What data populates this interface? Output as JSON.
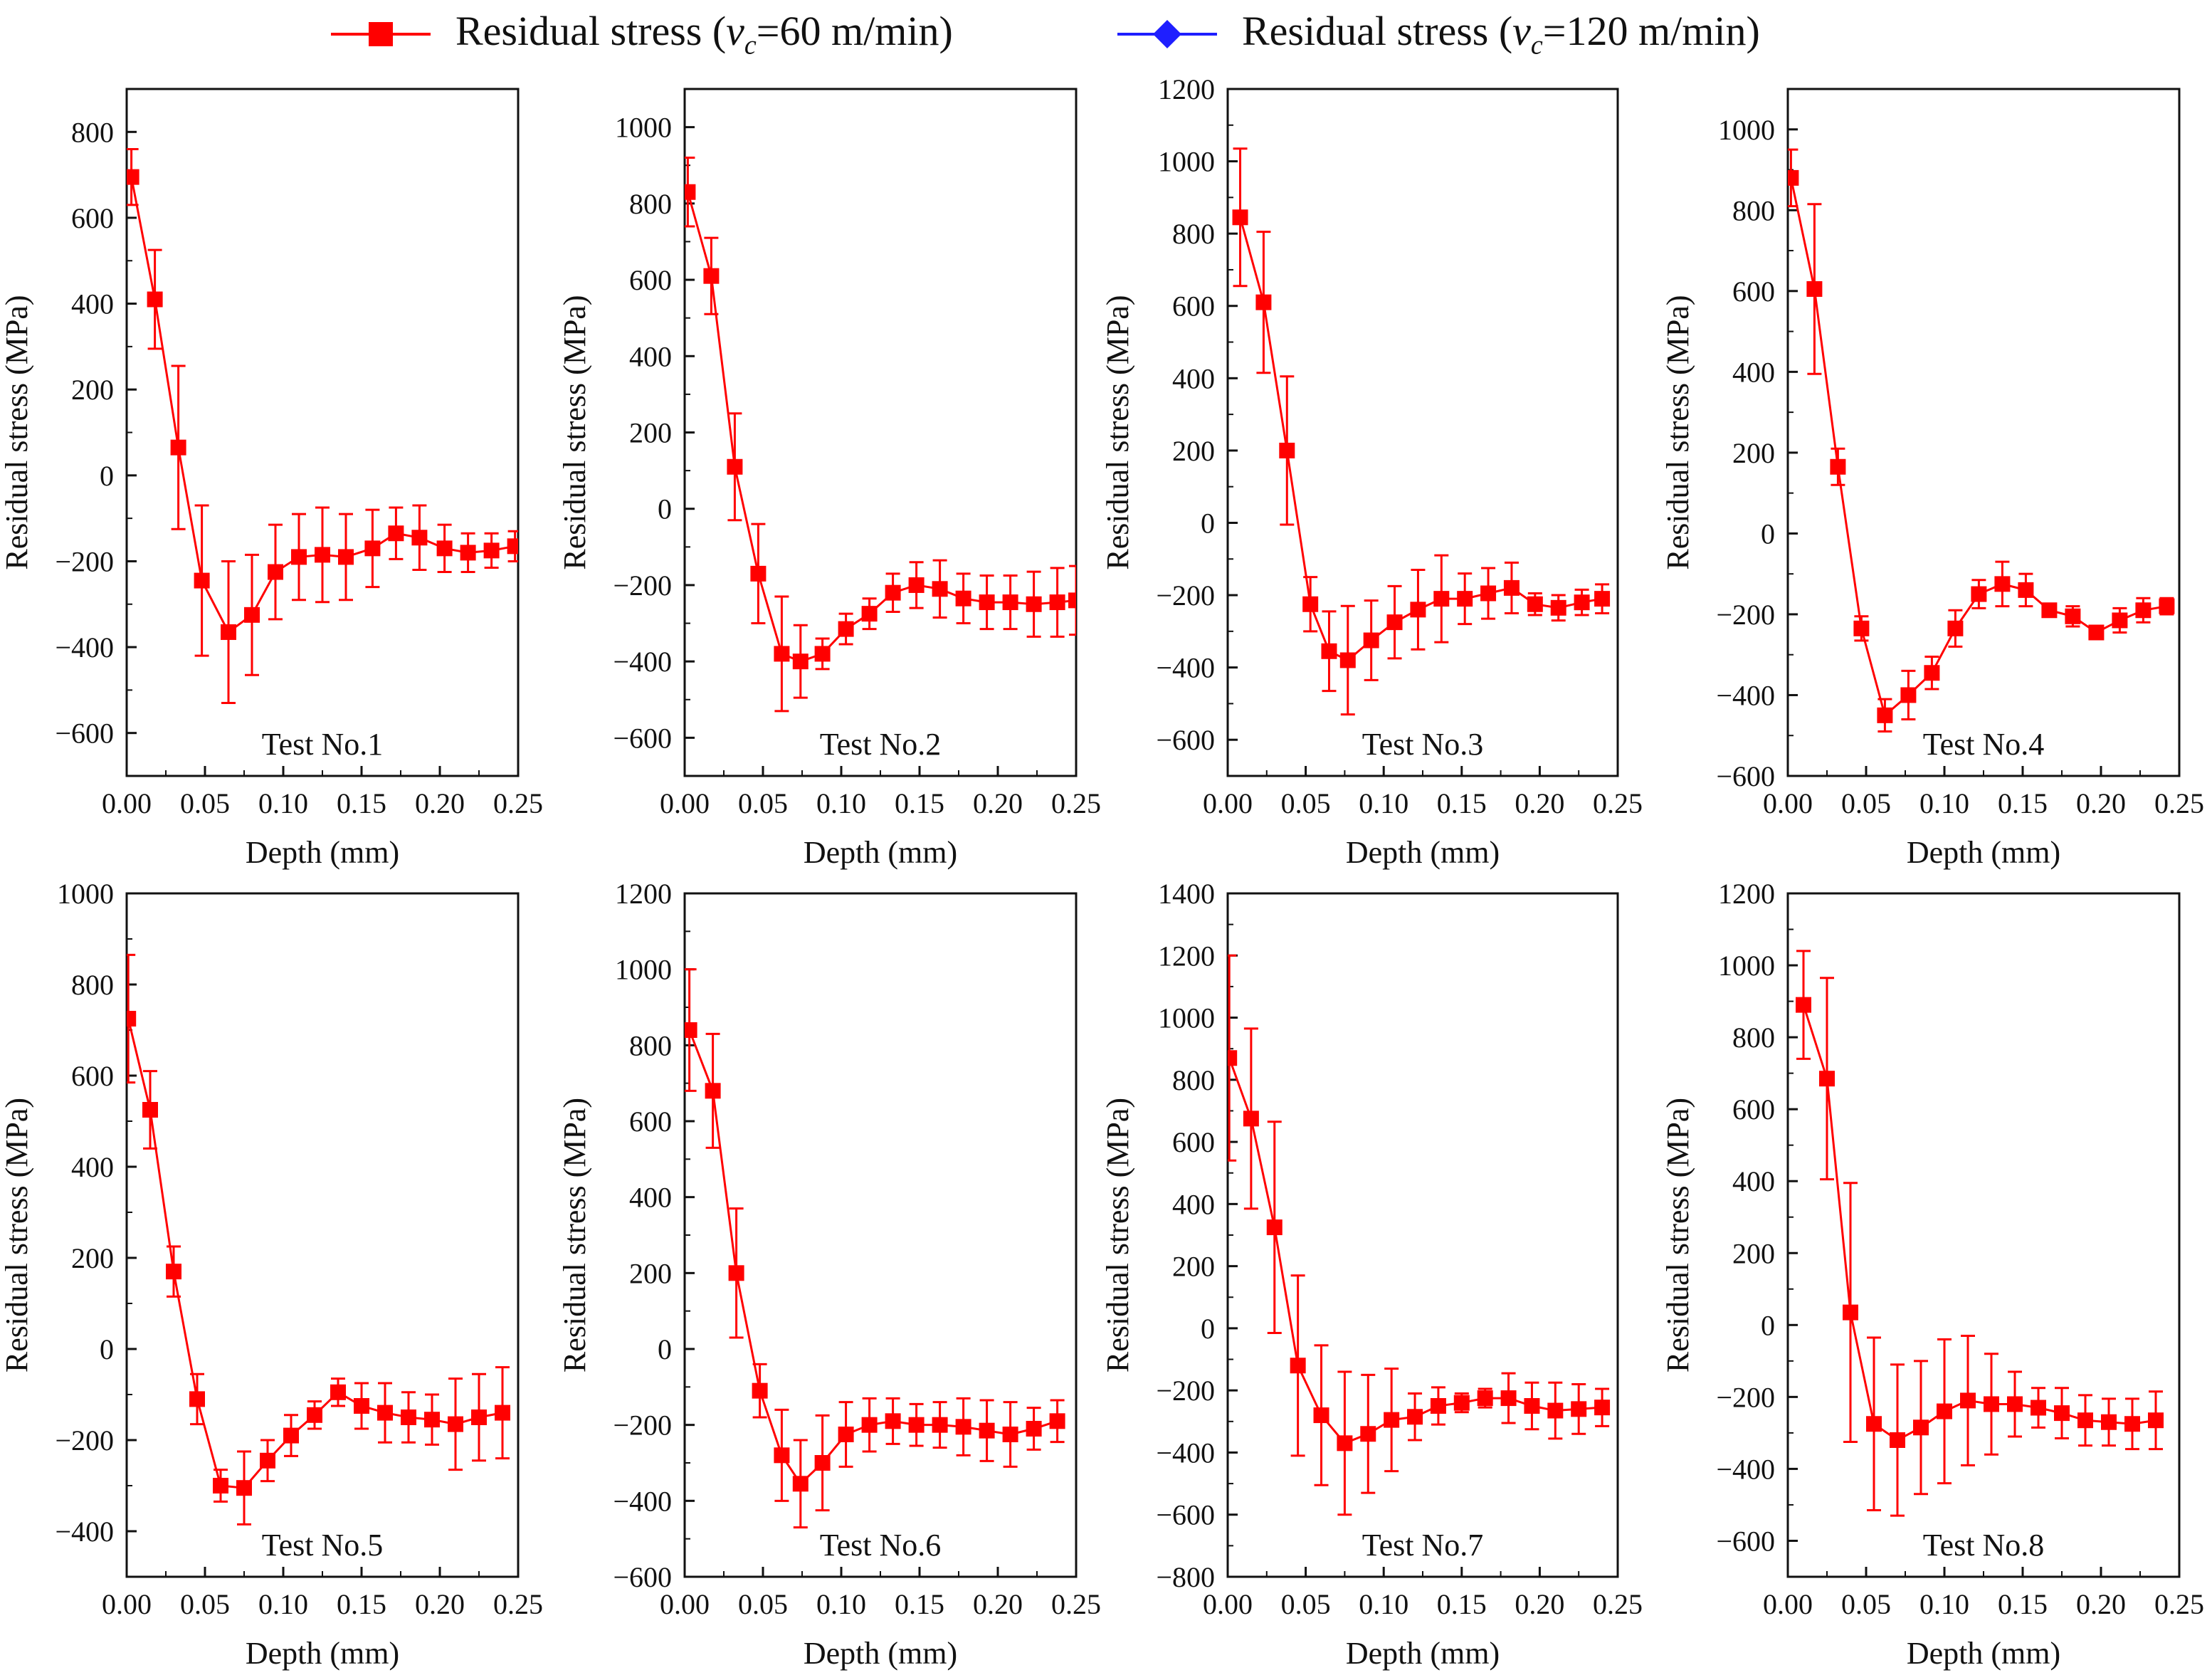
{
  "legend": {
    "series": [
      {
        "name": "Residual stress (vc=60 m/min)",
        "prefix": "Residual stress (",
        "var": "v",
        "sub": "c",
        "suffix": "=60 m/min)",
        "color": "#ff0000",
        "marker": "square"
      },
      {
        "name": "Residual stress (vc=120 m/min)",
        "prefix": "Residual stress (",
        "var": "v",
        "sub": "c",
        "suffix": "=120 m/min)",
        "color": "#1f1fff",
        "marker": "diamond"
      }
    ]
  },
  "chart_data": [
    {
      "type": "line",
      "title": "Test No.1",
      "xlabel": "Depth (mm)",
      "ylabel": "Residual stress (MPa)",
      "xlim": [
        0,
        0.25
      ],
      "ylim": [
        -700,
        900
      ],
      "xticks": [
        "0.00",
        "0.05",
        "0.10",
        "0.15",
        "0.20",
        "0.25"
      ],
      "yticks": [
        -600,
        -400,
        -200,
        0,
        200,
        400,
        600,
        800
      ],
      "series": [
        {
          "name": "Residual stress (vc=60 m/min)",
          "color": "#ff0000",
          "x": [
            0.003,
            0.018,
            0.033,
            0.048,
            0.065,
            0.08,
            0.095,
            0.11,
            0.125,
            0.14,
            0.157,
            0.172,
            0.187,
            0.203,
            0.218,
            0.233,
            0.248
          ],
          "y": [
            695,
            410,
            65,
            -245,
            -365,
            -325,
            -225,
            -190,
            -185,
            -190,
            -170,
            -135,
            -145,
            -170,
            -180,
            -175,
            -165
          ],
          "err": [
            65,
            115,
            190,
            175,
            165,
            140,
            110,
            100,
            110,
            100,
            90,
            60,
            75,
            55,
            45,
            40,
            35
          ]
        }
      ]
    },
    {
      "type": "line",
      "title": "Test No.2",
      "xlabel": "Depth (mm)",
      "ylabel": "Residual stress (MPa)",
      "xlim": [
        0,
        0.25
      ],
      "ylim": [
        -700,
        1100
      ],
      "xticks": [
        "0.00",
        "0.05",
        "0.10",
        "0.15",
        "0.20",
        "0.25"
      ],
      "yticks": [
        -600,
        -400,
        -200,
        0,
        200,
        400,
        600,
        800,
        1000
      ],
      "series": [
        {
          "name": "Residual stress (vc=60 m/min)",
          "color": "#ff0000",
          "x": [
            0.002,
            0.017,
            0.032,
            0.047,
            0.062,
            0.074,
            0.088,
            0.103,
            0.118,
            0.133,
            0.148,
            0.163,
            0.178,
            0.193,
            0.208,
            0.223,
            0.238,
            0.25
          ],
          "y": [
            830,
            610,
            110,
            -170,
            -380,
            -400,
            -380,
            -315,
            -275,
            -220,
            -200,
            -210,
            -235,
            -245,
            -245,
            -250,
            -245,
            -240
          ],
          "err": [
            90,
            100,
            140,
            130,
            150,
            95,
            40,
            40,
            40,
            50,
            60,
            75,
            65,
            70,
            70,
            85,
            90,
            90
          ]
        }
      ]
    },
    {
      "type": "line",
      "title": "Test No.3",
      "xlabel": "Depth (mm)",
      "ylabel": "Residual stress (MPa)",
      "xlim": [
        0,
        0.25
      ],
      "ylim": [
        -700,
        1200
      ],
      "xticks": [
        "0.00",
        "0.05",
        "0.10",
        "0.15",
        "0.20",
        "0.25"
      ],
      "yticks": [
        -600,
        -400,
        -200,
        0,
        200,
        400,
        600,
        800,
        1000,
        1200
      ],
      "series": [
        {
          "name": "Residual stress (vc=60 m/min)",
          "color": "#ff0000",
          "x": [
            0.008,
            0.023,
            0.038,
            0.053,
            0.065,
            0.077,
            0.092,
            0.107,
            0.122,
            0.137,
            0.152,
            0.167,
            0.182,
            0.197,
            0.212,
            0.227,
            0.24
          ],
          "y": [
            845,
            610,
            200,
            -225,
            -355,
            -380,
            -325,
            -275,
            -240,
            -210,
            -210,
            -195,
            -180,
            -225,
            -235,
            -220,
            -210
          ],
          "err": [
            190,
            195,
            205,
            75,
            110,
            150,
            110,
            100,
            110,
            120,
            70,
            70,
            70,
            30,
            35,
            35,
            40
          ]
        }
      ]
    },
    {
      "type": "line",
      "title": "Test No.4",
      "xlabel": "Depth (mm)",
      "ylabel": "Residual stress (MPa)",
      "xlim": [
        0,
        0.25
      ],
      "ylim": [
        -600,
        1100
      ],
      "xticks": [
        "0.00",
        "0.05",
        "0.10",
        "0.15",
        "0.20",
        "0.25"
      ],
      "yticks": [
        -600,
        -400,
        -200,
        0,
        200,
        400,
        600,
        800,
        1000
      ],
      "series": [
        {
          "name": "Residual stress (vc=60 m/min)",
          "color": "#ff0000",
          "x": [
            0.002,
            0.017,
            0.032,
            0.047,
            0.062,
            0.077,
            0.092,
            0.107,
            0.122,
            0.137,
            0.152,
            0.167,
            0.182,
            0.197,
            0.212,
            0.227,
            0.242
          ],
          "y": [
            880,
            605,
            165,
            -235,
            -450,
            -400,
            -345,
            -235,
            -150,
            -125,
            -140,
            -190,
            -205,
            -245,
            -215,
            -190,
            -180
          ],
          "err": [
            70,
            210,
            45,
            30,
            40,
            60,
            40,
            45,
            35,
            55,
            40,
            15,
            25,
            15,
            30,
            30,
            20
          ]
        }
      ]
    },
    {
      "type": "line",
      "title": "Test No.5",
      "xlabel": "Depth (mm)",
      "ylabel": "Residual stress (MPa)",
      "xlim": [
        0,
        0.25
      ],
      "ylim": [
        -500,
        1000
      ],
      "xticks": [
        "0.00",
        "0.05",
        "0.10",
        "0.15",
        "0.20",
        "0.25"
      ],
      "yticks": [
        -400,
        -200,
        0,
        200,
        400,
        600,
        800,
        1000
      ],
      "series": [
        {
          "name": "Residual stress (vc=60 m/min)",
          "color": "#ff0000",
          "x": [
            0.001,
            0.015,
            0.03,
            0.045,
            0.06,
            0.075,
            0.09,
            0.105,
            0.12,
            0.135,
            0.15,
            0.165,
            0.18,
            0.195,
            0.21,
            0.225,
            0.24
          ],
          "y": [
            725,
            525,
            170,
            -110,
            -300,
            -305,
            -245,
            -190,
            -145,
            -95,
            -125,
            -140,
            -150,
            -155,
            -165,
            -150,
            -140
          ],
          "err": [
            140,
            85,
            55,
            55,
            35,
            80,
            45,
            45,
            30,
            30,
            50,
            65,
            55,
            55,
            100,
            95,
            100
          ]
        }
      ]
    },
    {
      "type": "line",
      "title": "Test No.6",
      "xlabel": "Depth (mm)",
      "ylabel": "Residual stress (MPa)",
      "xlim": [
        0,
        0.25
      ],
      "ylim": [
        -600,
        1200
      ],
      "xticks": [
        "0.00",
        "0.05",
        "0.10",
        "0.15",
        "0.20",
        "0.25"
      ],
      "yticks": [
        -600,
        -400,
        -200,
        0,
        200,
        400,
        600,
        800,
        1000,
        1200
      ],
      "series": [
        {
          "name": "Residual stress (vc=60 m/min)",
          "color": "#ff0000",
          "x": [
            0.003,
            0.018,
            0.033,
            0.048,
            0.062,
            0.074,
            0.088,
            0.103,
            0.118,
            0.133,
            0.148,
            0.163,
            0.178,
            0.193,
            0.208,
            0.223,
            0.238
          ],
          "y": [
            840,
            680,
            200,
            -110,
            -280,
            -355,
            -300,
            -225,
            -200,
            -190,
            -200,
            -200,
            -205,
            -215,
            -225,
            -210,
            -190
          ],
          "err": [
            160,
            150,
            170,
            70,
            120,
            115,
            125,
            85,
            70,
            60,
            55,
            60,
            75,
            80,
            85,
            55,
            55
          ]
        }
      ]
    },
    {
      "type": "line",
      "title": "Test No.7",
      "xlabel": "Depth (mm)",
      "ylabel": "Residual stress (MPa)",
      "xlim": [
        0,
        0.25
      ],
      "ylim": [
        -800,
        1400
      ],
      "xticks": [
        "0.00",
        "0.05",
        "0.10",
        "0.15",
        "0.20",
        "0.25"
      ],
      "yticks": [
        -800,
        -600,
        -400,
        -200,
        0,
        200,
        400,
        600,
        800,
        1000,
        1200,
        1400
      ],
      "series": [
        {
          "name": "Residual stress (vc=60 m/min)",
          "color": "#ff0000",
          "x": [
            0.001,
            0.015,
            0.03,
            0.045,
            0.06,
            0.075,
            0.09,
            0.105,
            0.12,
            0.135,
            0.15,
            0.165,
            0.18,
            0.195,
            0.21,
            0.225,
            0.24
          ],
          "y": [
            870,
            675,
            325,
            -120,
            -280,
            -370,
            -340,
            -295,
            -285,
            -250,
            -240,
            -225,
            -225,
            -250,
            -265,
            -260,
            -255
          ],
          "err": [
            330,
            290,
            340,
            290,
            225,
            230,
            190,
            165,
            75,
            60,
            30,
            30,
            80,
            75,
            90,
            80,
            60
          ]
        }
      ]
    },
    {
      "type": "line",
      "title": "Test No.8",
      "xlabel": "Depth (mm)",
      "ylabel": "Residual stress (MPa)",
      "xlim": [
        0,
        0.25
      ],
      "ylim": [
        -700,
        1200
      ],
      "xticks": [
        "0.00",
        "0.05",
        "0.10",
        "0.15",
        "0.20",
        "0.25"
      ],
      "yticks": [
        -600,
        -400,
        -200,
        0,
        200,
        400,
        600,
        800,
        1000,
        1200
      ],
      "series": [
        {
          "name": "Residual stress (vc=60 m/min)",
          "color": "#ff0000",
          "x": [
            0.01,
            0.025,
            0.04,
            0.055,
            0.07,
            0.085,
            0.1,
            0.115,
            0.13,
            0.145,
            0.16,
            0.175,
            0.19,
            0.205,
            0.22,
            0.235
          ],
          "y": [
            890,
            685,
            35,
            -275,
            -320,
            -285,
            -240,
            -210,
            -220,
            -220,
            -230,
            -245,
            -265,
            -270,
            -275,
            -265
          ],
          "err": [
            150,
            280,
            360,
            240,
            210,
            185,
            200,
            180,
            140,
            90,
            55,
            70,
            70,
            65,
            70,
            80
          ]
        }
      ]
    }
  ]
}
